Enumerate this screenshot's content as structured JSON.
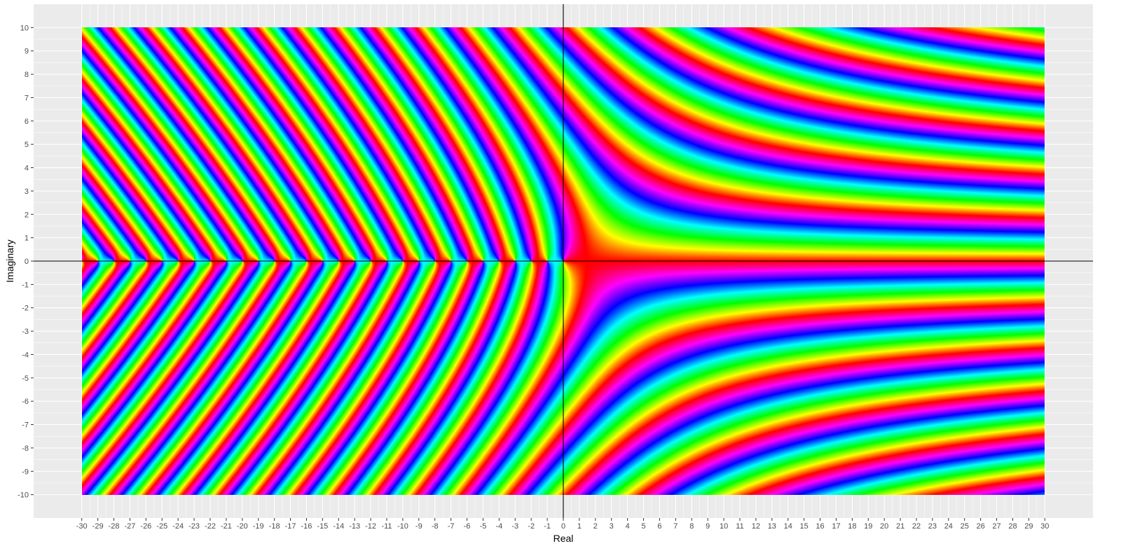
{
  "chart_data": {
    "type": "heatmap",
    "title": "",
    "xlabel": "Real",
    "ylabel": "Imaginary",
    "xlim": [
      -30,
      30
    ],
    "ylim": [
      -10,
      10
    ],
    "x_ticks": [
      -30,
      -29,
      -28,
      -27,
      -26,
      -25,
      -24,
      -23,
      -22,
      -21,
      -20,
      -19,
      -18,
      -17,
      -16,
      -15,
      -14,
      -13,
      -12,
      -11,
      -10,
      -9,
      -8,
      -7,
      -6,
      -5,
      -4,
      -3,
      -2,
      -1,
      0,
      1,
      2,
      3,
      4,
      5,
      6,
      7,
      8,
      9,
      10,
      11,
      12,
      13,
      14,
      15,
      16,
      17,
      18,
      19,
      20,
      21,
      22,
      23,
      24,
      25,
      26,
      27,
      28,
      29,
      30
    ],
    "y_ticks": [
      -10,
      -9,
      -8,
      -7,
      -6,
      -5,
      -4,
      -3,
      -2,
      -1,
      0,
      1,
      2,
      3,
      4,
      5,
      6,
      7,
      8,
      9,
      10
    ],
    "grid": true,
    "panel_background": "#EBEBEB",
    "grid_color": "#FFFFFF",
    "reference_lines": {
      "vertical_x": 0,
      "horizontal_y": 0,
      "color": "#000000"
    },
    "color_scale": "hue of complex argument (red → yellow → green → cyan → blue → magenta)",
    "legend": "none"
  }
}
